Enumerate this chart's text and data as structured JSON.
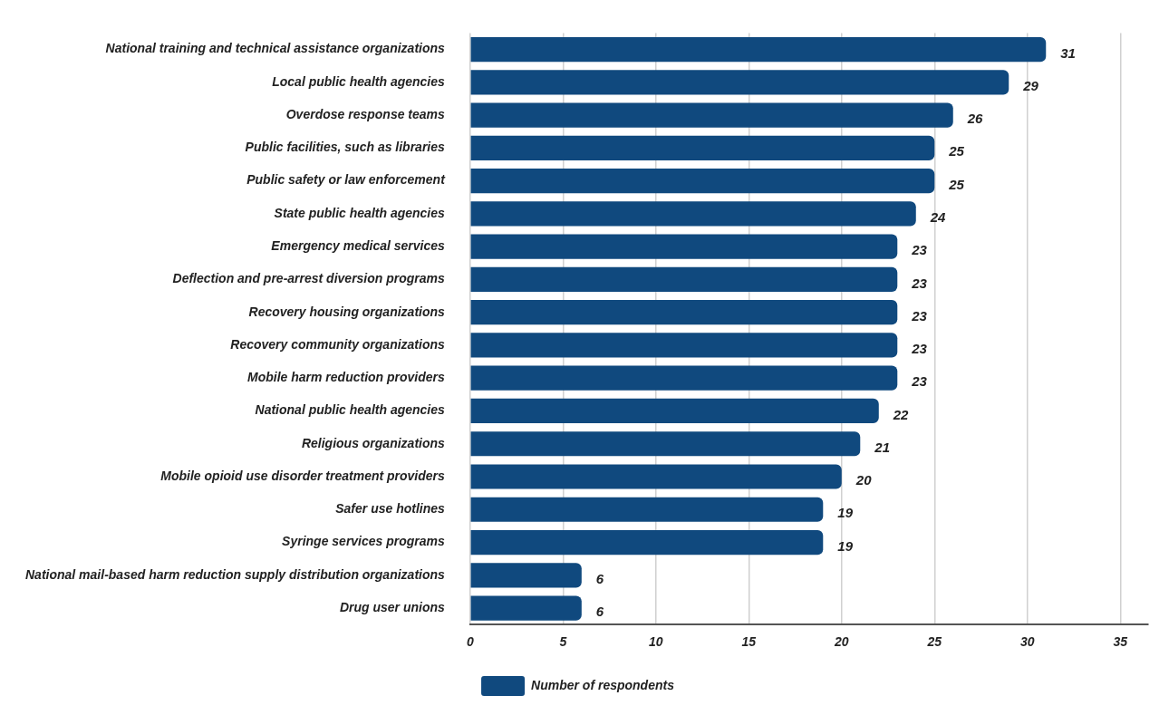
{
  "chart_data": {
    "type": "bar",
    "orientation": "horizontal",
    "categories": [
      "National training and technical assistance organizations",
      "Local public health agencies",
      "Overdose response teams",
      "Public facilities, such as libraries",
      "Public safety or law enforcement",
      "State public health agencies",
      "Emergency medical services",
      "Deflection and pre-arrest diversion programs",
      "Recovery housing organizations",
      "Recovery community organizations",
      "Mobile harm reduction providers",
      "National public health agencies",
      "Religious organizations",
      "Mobile opioid use disorder treatment providers",
      "Safer use hotlines",
      "Syringe services programs",
      "National mail-based harm reduction supply distribution organizations",
      "Drug user unions"
    ],
    "series": [
      {
        "name": "Number of respondents",
        "color": "#10497e",
        "values": [
          31,
          29,
          26,
          25,
          25,
          24,
          23,
          23,
          23,
          23,
          23,
          22,
          21,
          20,
          19,
          19,
          6,
          6
        ]
      }
    ],
    "xlim": [
      0,
      36.5
    ],
    "xticks": [
      0,
      5,
      10,
      15,
      20,
      25,
      30,
      35
    ],
    "grid": "x",
    "data_labels": true,
    "legend": "bottom"
  }
}
